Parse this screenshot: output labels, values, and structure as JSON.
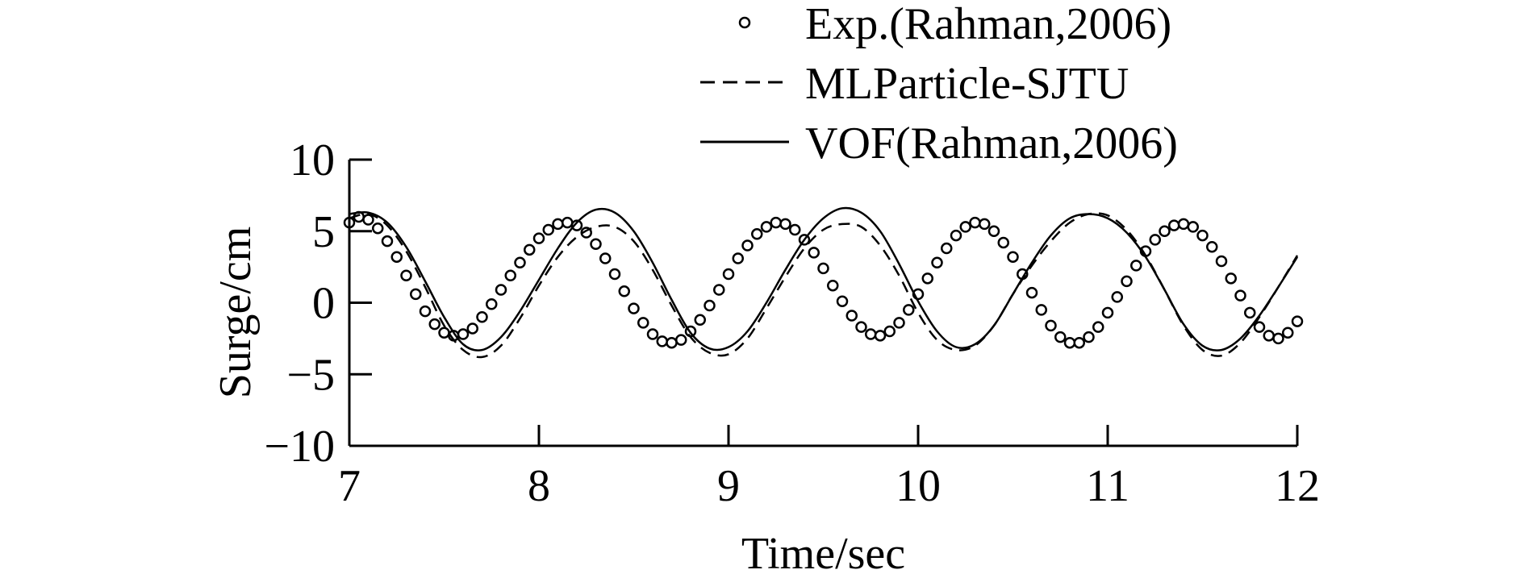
{
  "chart_data": {
    "type": "line",
    "title": "",
    "xlabel": "Time/sec",
    "ylabel": "Surge/cm",
    "xlim": [
      7,
      12
    ],
    "ylim": [
      -10,
      10
    ],
    "xticks": [
      7,
      8,
      9,
      10,
      11,
      12
    ],
    "yticks": [
      10,
      5,
      0,
      -5,
      -10
    ],
    "xtick_labels": [
      "7",
      "8",
      "9",
      "10",
      "11",
      "12"
    ],
    "ytick_labels": [
      "10",
      "5",
      "0",
      "−5",
      "−10"
    ],
    "grid": false,
    "legend_position": "top-center",
    "series": [
      {
        "name": "Exp.(Rahman,2006)",
        "style": "circles",
        "x": [
          7.0,
          7.05,
          7.1,
          7.15,
          7.2,
          7.25,
          7.3,
          7.35,
          7.4,
          7.45,
          7.5,
          7.55,
          7.6,
          7.65,
          7.7,
          7.75,
          7.8,
          7.85,
          7.9,
          7.95,
          8.0,
          8.05,
          8.1,
          8.15,
          8.2,
          8.25,
          8.3,
          8.35,
          8.4,
          8.45,
          8.5,
          8.55,
          8.6,
          8.65,
          8.7,
          8.75,
          8.8,
          8.85,
          8.9,
          8.95,
          9.0,
          9.05,
          9.1,
          9.15,
          9.2,
          9.25,
          9.3,
          9.35,
          9.4,
          9.45,
          9.5,
          9.55,
          9.6,
          9.65,
          9.7,
          9.75,
          9.8,
          9.85,
          9.9,
          9.95,
          10.0,
          10.05,
          10.1,
          10.15,
          10.2,
          10.25,
          10.3,
          10.35,
          10.4,
          10.45,
          10.5,
          10.55,
          10.6,
          10.65,
          10.7,
          10.75,
          10.8,
          10.85,
          10.9,
          10.95,
          11.0,
          11.05,
          11.1,
          11.15,
          11.2,
          11.25,
          11.3,
          11.35,
          11.4,
          11.45,
          11.5,
          11.55,
          11.6,
          11.65,
          11.7,
          11.75,
          11.8,
          11.85,
          11.9,
          11.95,
          12.0
        ],
        "y": [
          5.6,
          6.0,
          5.8,
          5.2,
          4.3,
          3.2,
          1.9,
          0.6,
          -0.6,
          -1.5,
          -2.1,
          -2.3,
          -2.2,
          -1.8,
          -1.0,
          -0.1,
          0.9,
          1.9,
          2.8,
          3.7,
          4.5,
          5.1,
          5.5,
          5.6,
          5.4,
          4.9,
          4.1,
          3.1,
          2.0,
          0.8,
          -0.4,
          -1.4,
          -2.2,
          -2.7,
          -2.8,
          -2.6,
          -2.0,
          -1.2,
          -0.2,
          0.9,
          2.0,
          3.1,
          4.0,
          4.8,
          5.3,
          5.6,
          5.5,
          5.1,
          4.4,
          3.5,
          2.4,
          1.2,
          0.1,
          -0.9,
          -1.7,
          -2.2,
          -2.3,
          -2.0,
          -1.4,
          -0.5,
          0.6,
          1.7,
          2.8,
          3.8,
          4.7,
          5.3,
          5.6,
          5.5,
          5.0,
          4.2,
          3.2,
          2.0,
          0.7,
          -0.5,
          -1.6,
          -2.4,
          -2.8,
          -2.8,
          -2.4,
          -1.7,
          -0.7,
          0.4,
          1.5,
          2.6,
          3.6,
          4.4,
          5.0,
          5.4,
          5.5,
          5.3,
          4.7,
          3.9,
          2.9,
          1.7,
          0.5,
          -0.7,
          -1.7,
          -2.3,
          -2.5,
          -2.1,
          -1.3
        ]
      },
      {
        "name": "MLParticle-SJTU",
        "style": "dashed",
        "x": [
          7.0,
          7.1,
          7.2,
          7.3,
          7.4,
          7.5,
          7.6,
          7.7,
          7.8,
          7.9,
          8.0,
          8.1,
          8.2,
          8.3,
          8.4,
          8.5,
          8.6,
          8.7,
          8.8,
          8.9,
          9.0,
          9.1,
          9.2,
          9.3,
          9.4,
          9.5,
          9.6,
          9.7,
          9.8,
          9.9,
          10.0,
          10.1,
          10.2,
          10.3,
          10.4,
          10.5,
          10.6,
          10.7,
          10.8,
          10.9,
          11.0,
          11.1,
          11.2,
          11.3,
          11.4,
          11.5,
          11.6,
          11.7,
          11.8,
          11.9,
          12.0
        ],
        "y": [
          5.9,
          6.2,
          5.4,
          3.6,
          1.1,
          -1.6,
          -3.3,
          -3.8,
          -3.0,
          -1.1,
          1.2,
          3.2,
          4.6,
          5.3,
          5.3,
          4.3,
          2.3,
          -0.2,
          -2.4,
          -3.5,
          -3.6,
          -2.5,
          -0.4,
          1.8,
          3.8,
          5.1,
          5.5,
          5.3,
          4.0,
          1.9,
          -0.7,
          -2.6,
          -3.3,
          -3.0,
          -1.6,
          0.6,
          2.6,
          4.3,
          5.6,
          6.2,
          6.1,
          5.1,
          3.3,
          0.9,
          -1.6,
          -3.3,
          -3.7,
          -2.8,
          -1.0,
          1.1,
          3.3
        ]
      },
      {
        "name": "VOF(Rahman,2006)",
        "style": "solid",
        "x": [
          7.0,
          7.1,
          7.2,
          7.3,
          7.4,
          7.5,
          7.6,
          7.7,
          7.8,
          7.9,
          8.0,
          8.1,
          8.2,
          8.3,
          8.4,
          8.5,
          8.6,
          8.7,
          8.8,
          8.9,
          9.0,
          9.1,
          9.2,
          9.3,
          9.4,
          9.5,
          9.6,
          9.7,
          9.8,
          9.9,
          10.0,
          10.1,
          10.2,
          10.3,
          10.4,
          10.5,
          10.6,
          10.7,
          10.8,
          10.9,
          11.0,
          11.1,
          11.2,
          11.3,
          11.4,
          11.5,
          11.6,
          11.7,
          11.8,
          11.9,
          12.0
        ],
        "y": [
          6.2,
          6.3,
          5.6,
          3.9,
          1.5,
          -1.0,
          -2.9,
          -3.3,
          -2.4,
          -0.6,
          1.6,
          3.8,
          5.6,
          6.5,
          6.3,
          5.0,
          2.8,
          0.2,
          -2.1,
          -3.2,
          -3.1,
          -2.0,
          0.0,
          2.3,
          4.4,
          5.9,
          6.6,
          6.3,
          5.0,
          2.7,
          0.1,
          -2.0,
          -3.1,
          -2.9,
          -1.6,
          0.6,
          2.8,
          4.7,
          5.9,
          6.2,
          5.9,
          4.9,
          3.2,
          0.9,
          -1.5,
          -3.0,
          -3.3,
          -2.5,
          -0.9,
          1.1,
          3.2
        ]
      }
    ]
  }
}
